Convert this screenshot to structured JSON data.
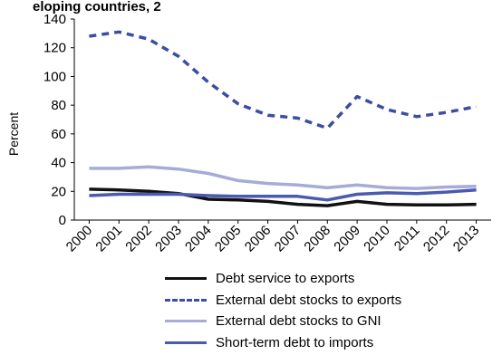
{
  "title_fragment": "eloping countries, 2",
  "chart_data": {
    "type": "line",
    "ylabel": "Percent",
    "xlabel": "",
    "ylim": [
      0,
      140
    ],
    "yticks": [
      0,
      20,
      40,
      60,
      80,
      100,
      120,
      140
    ],
    "x": [
      "2000",
      "2001",
      "2002",
      "2003",
      "2004",
      "2005",
      "2006",
      "2007",
      "2008",
      "2009",
      "2010",
      "2011",
      "2012",
      "2013"
    ],
    "legend_position": "bottom",
    "grid": false,
    "series": [
      {
        "name": "Debt service to exports",
        "color": "#111111",
        "style": "solid",
        "values": [
          21.5,
          21,
          20,
          18.5,
          14.5,
          14,
          13,
          11,
          10,
          13,
          11,
          10.5,
          10.5,
          11
        ]
      },
      {
        "name": "External debt stocks to exports",
        "color": "#3b4ea2",
        "style": "dashed",
        "values": [
          128,
          131,
          126,
          114,
          96,
          81,
          73,
          71,
          64,
          86,
          77,
          72,
          75,
          79
        ]
      },
      {
        "name": "External debt stocks to GNI",
        "color": "#a7abd8",
        "style": "solid",
        "values": [
          36,
          36,
          37,
          35.5,
          32.5,
          27.5,
          25.5,
          24.5,
          22.5,
          24.5,
          22.5,
          22,
          23,
          23.5
        ]
      },
      {
        "name": "Short-term debt to imports",
        "color": "#4a5aae",
        "style": "solid",
        "values": [
          17,
          18,
          18,
          18,
          17,
          16.5,
          16.5,
          16.5,
          14,
          18,
          19,
          18.5,
          19.5,
          21
        ]
      }
    ]
  }
}
